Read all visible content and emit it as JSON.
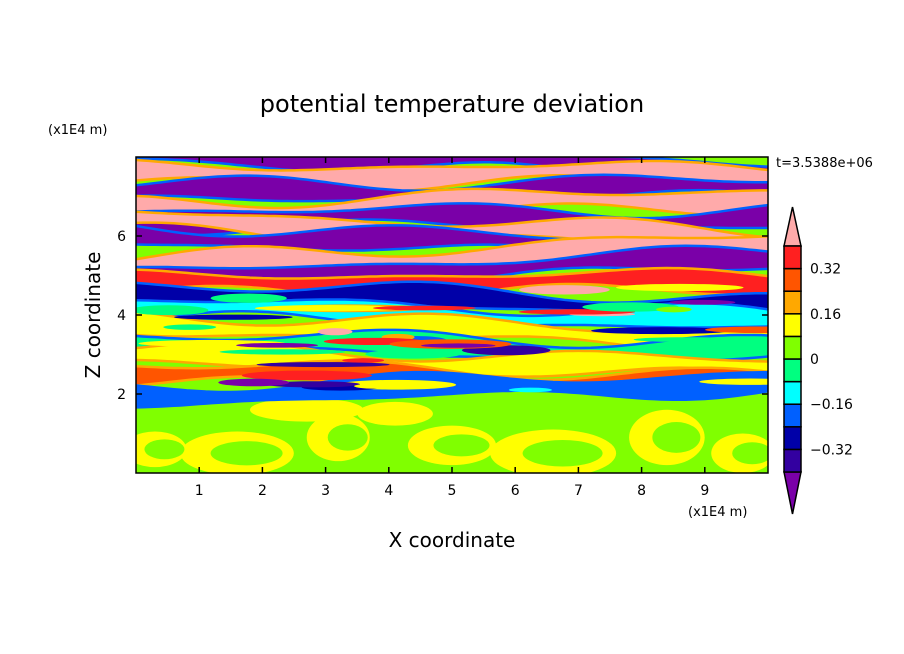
{
  "chart_data": {
    "type": "heatmap",
    "title": "potential temperature deviation",
    "xlabel": "X coordinate",
    "ylabel": "Z coordinate",
    "x_unit": "(x1E4 m)",
    "y_unit": "(x1E4 m)",
    "time_label": "t=3.5388e+06",
    "xlim": [
      0,
      10
    ],
    "ylim": [
      0,
      8
    ],
    "x_ticks": [
      "1",
      "2",
      "3",
      "4",
      "5",
      "6",
      "7",
      "8",
      "9"
    ],
    "y_ticks": [
      "2",
      "4",
      "6"
    ],
    "levels": [
      -0.4,
      -0.32,
      -0.24,
      -0.16,
      -0.08,
      0,
      0.08,
      0.16,
      0.24,
      0.32,
      0.4
    ],
    "colorbar_labels": [
      "0.32",
      "0.16",
      "0",
      "-0.16",
      "-0.32"
    ],
    "colors": [
      "#7a00a8",
      "#3300a0",
      "#0000a8",
      "#0060ff",
      "#00ffff",
      "#00ff80",
      "#80ff00",
      "#ffff00",
      "#ffa800",
      "#ff5500",
      "#ff2020",
      "#ffaaaa"
    ],
    "bands": [
      {
        "z": 7.9,
        "value": -0.45
      },
      {
        "z": 7.55,
        "value": 0.45
      },
      {
        "z": 7.15,
        "value": -0.45
      },
      {
        "z": 6.8,
        "value": 0.45
      },
      {
        "z": 6.45,
        "value": -0.45
      },
      {
        "z": 6.15,
        "value": 0.45
      },
      {
        "z": 5.85,
        "value": -0.45
      },
      {
        "z": 5.5,
        "value": 0.45
      },
      {
        "z": 5.15,
        "value": -0.45
      },
      {
        "z": 4.8,
        "value": 0.35
      },
      {
        "z": 4.4,
        "value": -0.3
      },
      {
        "z": 4.0,
        "value": -0.1
      },
      {
        "z": 3.6,
        "value": 0.1
      },
      {
        "z": 3.2,
        "value": -0.05
      },
      {
        "z": 2.8,
        "value": 0.12
      },
      {
        "z": 2.4,
        "value": 0.3
      },
      {
        "z": 2.15,
        "value": -0.2
      },
      {
        "z": 1.0,
        "value": 0.02
      }
    ]
  }
}
